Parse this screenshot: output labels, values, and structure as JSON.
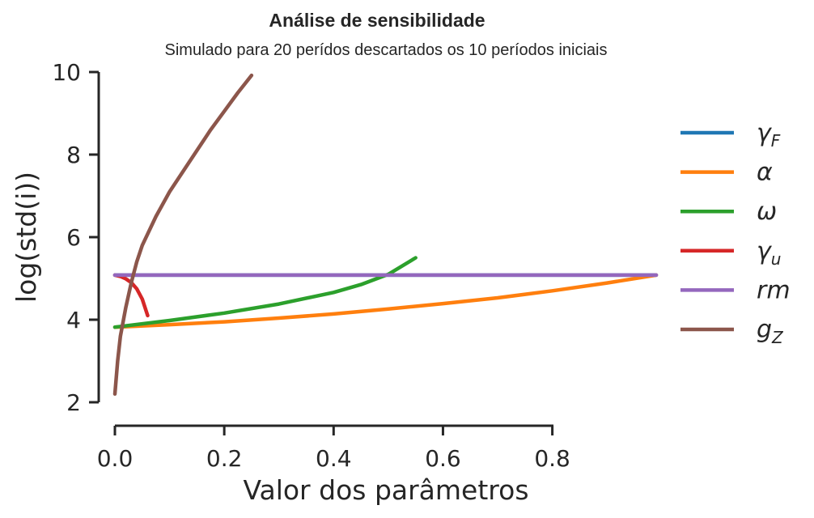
{
  "chart_data": {
    "type": "line",
    "title": "Análise de sensibilidade",
    "subtitle": "Simulado para 20 perídos descartados os 10 períodos iniciais",
    "xlabel": "Valor dos parâmetros",
    "ylabel": "log(std(i))",
    "xlim": [
      0.0,
      0.99
    ],
    "ylim": [
      2,
      10
    ],
    "xticks": [
      "0.0",
      "0.2",
      "0.4",
      "0.6",
      "0.8"
    ],
    "yticks": [
      "2",
      "4",
      "6",
      "8",
      "10"
    ],
    "grid": false,
    "legend_position": "right",
    "series": [
      {
        "name": "γF",
        "symbol": "γ",
        "sub": "F",
        "color": "#1f77b4",
        "x": [
          0.0,
          0.99
        ],
        "y": [
          5.08,
          5.08
        ]
      },
      {
        "name": "α",
        "symbol": "α",
        "sub": "",
        "color": "#ff7f0e",
        "x": [
          0.0,
          0.1,
          0.2,
          0.3,
          0.4,
          0.5,
          0.6,
          0.7,
          0.8,
          0.9,
          0.99
        ],
        "y": [
          3.82,
          3.88,
          3.95,
          4.04,
          4.14,
          4.26,
          4.39,
          4.53,
          4.7,
          4.89,
          5.08
        ]
      },
      {
        "name": "ω",
        "symbol": "ω",
        "sub": "",
        "color": "#2ca02c",
        "x": [
          0.0,
          0.1,
          0.2,
          0.3,
          0.4,
          0.45,
          0.5,
          0.55
        ],
        "y": [
          3.82,
          3.98,
          4.16,
          4.38,
          4.66,
          4.85,
          5.1,
          5.5
        ]
      },
      {
        "name": "γu",
        "symbol": "γ",
        "sub": "u",
        "color": "#d62728",
        "x": [
          0.0,
          0.01,
          0.02,
          0.03,
          0.04,
          0.05,
          0.06
        ],
        "y": [
          5.08,
          5.05,
          4.99,
          4.9,
          4.75,
          4.5,
          4.1
        ]
      },
      {
        "name": "rm",
        "symbol": "rm",
        "sub": "",
        "color": "#9467bd",
        "x": [
          0.0,
          0.99
        ],
        "y": [
          5.08,
          5.08
        ]
      },
      {
        "name": "gZ",
        "symbol": "g",
        "sub": "Z",
        "color": "#8c564b",
        "x": [
          0.0,
          0.005,
          0.01,
          0.02,
          0.03,
          0.04,
          0.05,
          0.075,
          0.1,
          0.125,
          0.15,
          0.175,
          0.2,
          0.225,
          0.25
        ],
        "y": [
          2.2,
          3.0,
          3.6,
          4.3,
          4.9,
          5.4,
          5.8,
          6.5,
          7.1,
          7.6,
          8.1,
          8.6,
          9.05,
          9.5,
          9.92
        ]
      }
    ]
  }
}
